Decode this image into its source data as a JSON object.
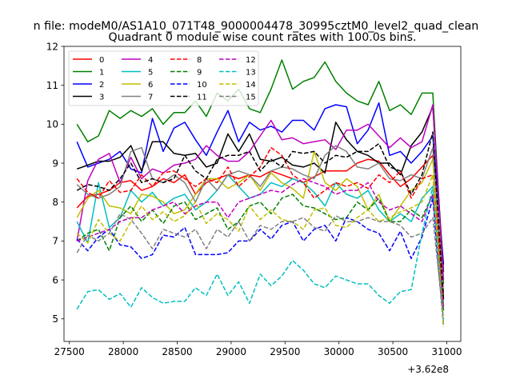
{
  "suptitle": "n file: modeM0/AS1A10_071T48_9000004478_30995cztM0_level2_quad_clean",
  "chart_data": {
    "type": "line",
    "title": "Quadrant 0 module wise count rates with 100.0s bins.",
    "xlabel": "",
    "ylabel": "",
    "xlim": [
      27450,
      31130
    ],
    "ylim": [
      4.42,
      12.0
    ],
    "x_ticks": [
      27500,
      28000,
      28500,
      29000,
      29500,
      30000,
      30500,
      31000
    ],
    "y_ticks": [
      5,
      6,
      7,
      8,
      9,
      10,
      11,
      12
    ],
    "offset_text": "+3.62e8",
    "grid": false,
    "legend": {
      "placement": "top-left",
      "columns": 4
    },
    "x": [
      27570,
      27670,
      27770,
      27870,
      27970,
      28070,
      28170,
      28270,
      28370,
      28470,
      28570,
      28670,
      28770,
      28870,
      28970,
      29070,
      29170,
      29270,
      29370,
      29470,
      29570,
      29670,
      29770,
      29870,
      29970,
      30070,
      30170,
      30270,
      30370,
      30470,
      30570,
      30670,
      30770,
      30870,
      30970
    ],
    "series": [
      {
        "name": "0",
        "color": "#ff0000",
        "dash": "solid",
        "values": [
          7.85,
          8.15,
          8.2,
          8.3,
          8.5,
          8.55,
          8.3,
          8.4,
          8.6,
          8.5,
          8.7,
          8.2,
          8.5,
          8.6,
          8.7,
          8.6,
          8.7,
          8.65,
          8.8,
          8.7,
          8.6,
          8.5,
          8.65,
          8.8,
          8.8,
          8.8,
          9.0,
          9.1,
          9.05,
          8.7,
          8.4,
          8.6,
          8.9,
          9.2,
          5.6
        ]
      },
      {
        "name": "1",
        "color": "#008000",
        "dash": "solid",
        "values": [
          10.0,
          9.55,
          9.7,
          10.35,
          10.15,
          10.35,
          10.2,
          10.4,
          10.0,
          10.3,
          10.3,
          10.6,
          10.2,
          10.8,
          10.6,
          10.9,
          10.4,
          10.3,
          10.9,
          11.65,
          10.9,
          11.1,
          11.2,
          11.6,
          11.1,
          10.8,
          10.6,
          10.5,
          11.1,
          10.35,
          10.5,
          10.25,
          10.8,
          10.8,
          5.9
        ]
      },
      {
        "name": "2",
        "color": "#0000ff",
        "dash": "solid",
        "values": [
          9.55,
          8.9,
          9.0,
          9.1,
          9.3,
          8.85,
          8.75,
          10.15,
          9.3,
          9.9,
          10.05,
          9.6,
          9.2,
          9.8,
          10.35,
          9.55,
          10.05,
          9.85,
          9.95,
          9.8,
          10.1,
          10.1,
          9.85,
          10.4,
          10.5,
          10.45,
          9.5,
          9.85,
          10.55,
          9.2,
          9.3,
          9.0,
          9.3,
          9.7,
          6.4
        ]
      },
      {
        "name": "3",
        "color": "#000000",
        "dash": "solid",
        "values": [
          8.85,
          8.95,
          9.05,
          9.05,
          9.15,
          9.45,
          8.8,
          9.55,
          9.55,
          9.25,
          9.2,
          9.25,
          8.9,
          9.0,
          9.75,
          9.3,
          9.75,
          9.1,
          9.05,
          9.15,
          8.95,
          8.9,
          9.0,
          8.75,
          10.05,
          9.6,
          9.3,
          9.2,
          9.0,
          9.0,
          8.7,
          9.45,
          9.8,
          10.45,
          6.2
        ]
      },
      {
        "name": "4",
        "color": "#bf00bf",
        "dash": "solid",
        "values": [
          7.0,
          8.55,
          9.1,
          9.25,
          8.5,
          9.15,
          8.6,
          8.85,
          8.75,
          8.95,
          9.0,
          9.1,
          9.45,
          9.2,
          9.05,
          9.05,
          9.3,
          9.7,
          10.1,
          9.6,
          9.65,
          9.5,
          9.55,
          9.6,
          9.35,
          9.85,
          9.85,
          10.0,
          9.7,
          9.4,
          9.65,
          9.4,
          9.55,
          10.5,
          6.0
        ]
      },
      {
        "name": "5",
        "color": "#00bfbf",
        "dash": "solid",
        "values": [
          7.5,
          6.95,
          8.5,
          7.35,
          7.6,
          8.3,
          8.0,
          8.25,
          7.9,
          8.1,
          8.2,
          7.8,
          8.0,
          8.3,
          8.7,
          8.4,
          8.1,
          8.2,
          8.5,
          8.4,
          8.6,
          8.5,
          8.25,
          7.9,
          8.5,
          8.2,
          8.1,
          8.3,
          7.8,
          7.5,
          7.7,
          7.5,
          8.1,
          8.4,
          5.4
        ]
      },
      {
        "name": "6",
        "color": "#bfbf00",
        "dash": "solid",
        "values": [
          7.6,
          8.1,
          8.3,
          7.9,
          7.85,
          7.7,
          8.2,
          8.15,
          8.0,
          7.7,
          7.8,
          8.2,
          8.6,
          8.6,
          8.35,
          8.5,
          8.7,
          8.3,
          8.75,
          8.5,
          8.35,
          8.1,
          9.3,
          8.5,
          8.3,
          8.6,
          8.4,
          7.8,
          8.2,
          7.5,
          7.9,
          8.3,
          8.5,
          9.1,
          5.3
        ]
      },
      {
        "name": "7",
        "color": "#808080",
        "dash": "solid",
        "values": [
          8.45,
          8.2,
          8.1,
          8.2,
          8.4,
          9.3,
          9.4,
          8.6,
          8.5,
          8.7,
          8.5,
          8.0,
          8.6,
          8.3,
          8.7,
          8.8,
          8.7,
          8.4,
          8.8,
          8.9,
          8.85,
          8.7,
          8.6,
          9.2,
          9.45,
          9.3,
          8.9,
          8.85,
          9.0,
          8.6,
          8.55,
          8.7,
          8.6,
          9.4,
          5.7
        ]
      },
      {
        "name": "8",
        "color": "#ff0000",
        "dash": "dashed",
        "values": [
          8.6,
          8.25,
          8.1,
          8.55,
          8.25,
          8.3,
          8.7,
          8.4,
          8.75,
          8.8,
          8.6,
          8.4,
          8.6,
          8.5,
          8.9,
          8.4,
          8.65,
          8.9,
          9.4,
          9.2,
          8.7,
          8.5,
          8.1,
          8.3,
          8.5,
          8.4,
          8.5,
          8.35,
          8.7,
          8.5,
          8.8,
          8.1,
          8.6,
          8.7,
          5.5
        ]
      },
      {
        "name": "9",
        "color": "#008000",
        "dash": "dashed",
        "values": [
          7.0,
          7.2,
          7.3,
          6.75,
          7.6,
          7.9,
          7.5,
          7.8,
          7.45,
          7.9,
          8.0,
          7.55,
          7.7,
          7.85,
          7.3,
          7.5,
          7.9,
          8.0,
          7.7,
          8.1,
          8.2,
          7.9,
          7.85,
          7.7,
          7.55,
          7.6,
          8.0,
          7.8,
          8.1,
          7.5,
          7.5,
          7.8,
          7.6,
          8.2,
          5.2
        ]
      },
      {
        "name": "10",
        "color": "#0000ff",
        "dash": "dashed",
        "values": [
          7.05,
          6.75,
          7.1,
          7.3,
          6.9,
          6.85,
          6.55,
          6.65,
          7.15,
          7.1,
          7.35,
          6.65,
          6.65,
          6.65,
          6.7,
          7.0,
          7.0,
          7.3,
          7.05,
          7.4,
          7.5,
          7.0,
          7.3,
          7.4,
          7.0,
          7.6,
          7.5,
          7.3,
          7.2,
          6.75,
          7.25,
          6.55,
          7.1,
          8.1,
          4.8
        ]
      },
      {
        "name": "11",
        "color": "#000000",
        "dash": "dashed",
        "values": [
          8.3,
          8.45,
          8.4,
          8.3,
          8.6,
          9.0,
          8.5,
          8.6,
          8.5,
          8.6,
          9.2,
          8.8,
          8.6,
          9.1,
          9.2,
          9.2,
          9.3,
          8.8,
          9.1,
          8.9,
          9.3,
          9.25,
          9.3,
          9.0,
          9.2,
          9.15,
          9.3,
          9.3,
          9.5,
          8.9,
          8.8,
          8.2,
          8.7,
          9.8,
          5.5
        ]
      },
      {
        "name": "12",
        "color": "#bf00bf",
        "dash": "dashed",
        "values": [
          7.0,
          7.1,
          7.2,
          7.3,
          7.5,
          7.6,
          7.6,
          7.8,
          7.9,
          8.0,
          7.7,
          7.9,
          8.0,
          8.0,
          7.6,
          8.0,
          8.1,
          8.2,
          8.3,
          8.25,
          8.45,
          8.6,
          8.5,
          8.4,
          8.2,
          8.3,
          8.3,
          8.5,
          8.0,
          7.8,
          7.9,
          7.7,
          7.5,
          8.2,
          5.3
        ]
      },
      {
        "name": "13",
        "color": "#00bfbf",
        "dash": "dashed",
        "values": [
          5.25,
          5.7,
          5.75,
          5.5,
          5.65,
          5.3,
          5.8,
          5.55,
          5.4,
          5.45,
          5.45,
          5.8,
          5.6,
          6.15,
          5.6,
          5.95,
          5.4,
          6.15,
          5.85,
          6.1,
          6.5,
          6.25,
          5.9,
          5.8,
          6.1,
          6.0,
          5.9,
          5.9,
          5.6,
          5.4,
          5.7,
          5.75,
          7.2,
          8.4,
          4.9
        ]
      },
      {
        "name": "14",
        "color": "#bfbf00",
        "dash": "dashed",
        "values": [
          7.2,
          6.95,
          7.55,
          7.2,
          7.0,
          7.5,
          7.9,
          7.55,
          7.75,
          7.5,
          7.65,
          8.0,
          7.45,
          7.7,
          7.55,
          7.25,
          7.9,
          7.55,
          7.8,
          7.55,
          7.5,
          7.3,
          7.8,
          7.85,
          7.4,
          7.35,
          7.6,
          7.8,
          7.5,
          7.6,
          7.75,
          7.85,
          8.0,
          8.7,
          4.8
        ]
      },
      {
        "name": "15",
        "color": "#808080",
        "dash": "dashed",
        "values": [
          6.7,
          7.15,
          7.0,
          7.2,
          7.7,
          7.55,
          7.2,
          6.8,
          7.3,
          7.2,
          7.1,
          7.3,
          6.8,
          7.3,
          7.1,
          7.5,
          7.0,
          7.4,
          7.3,
          7.5,
          7.5,
          7.6,
          7.35,
          7.25,
          7.65,
          7.5,
          7.5,
          7.6,
          7.5,
          7.5,
          7.4,
          7.1,
          7.2,
          7.6,
          5.0
        ]
      }
    ]
  }
}
